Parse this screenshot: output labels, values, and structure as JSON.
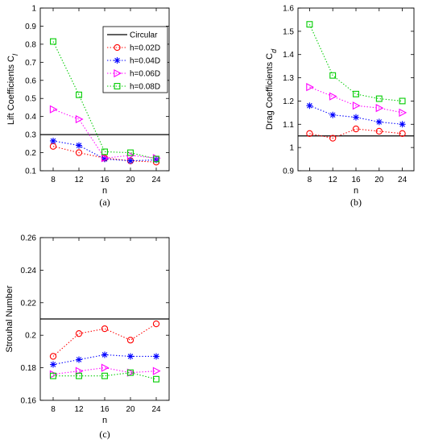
{
  "series_styles": [
    {
      "name": "h=0.02D",
      "color": "#ff0000",
      "marker": "circle"
    },
    {
      "name": "h=0.04D",
      "color": "#0000ff",
      "marker": "asterisk"
    },
    {
      "name": "h=0.06D",
      "color": "#ff00ff",
      "marker": "triangle-right"
    },
    {
      "name": "h=0.08D",
      "color": "#00cc00",
      "marker": "square"
    }
  ],
  "reference_style": {
    "name": "Circular",
    "color": "#000000"
  },
  "chart_data": [
    {
      "type": "line",
      "panel_label": "(a)",
      "xlabel": "n",
      "ylabel": "Lift Coefficients C",
      "ylabel_subscript": "l",
      "x": [
        8,
        12,
        16,
        20,
        24
      ],
      "xlim": [
        6,
        26
      ],
      "ylim": [
        0.1,
        1
      ],
      "yticks": [
        0.1,
        0.2,
        0.3,
        0.4,
        0.5,
        0.6,
        0.7,
        0.8,
        0.9,
        1
      ],
      "ytick_labels": [
        "0.1",
        "0.2",
        "0.3",
        "0.4",
        "0.5",
        "0.6",
        "0.7",
        "0.8",
        "0.9",
        "1"
      ],
      "reference_line": {
        "name": "Circular",
        "value": 0.3
      },
      "legend": {
        "position": "top-right",
        "entries": [
          "Circular",
          "h=0.02D",
          "h=0.04D",
          "h=0.06D",
          "h=0.08D"
        ]
      },
      "series": [
        {
          "name": "h=0.02D",
          "values": [
            0.235,
            0.2,
            0.17,
            0.155,
            0.148
          ]
        },
        {
          "name": "h=0.04D",
          "values": [
            0.265,
            0.24,
            0.165,
            0.155,
            0.16
          ]
        },
        {
          "name": "h=0.06D",
          "values": [
            0.44,
            0.385,
            0.17,
            0.185,
            0.17
          ]
        },
        {
          "name": "h=0.08D",
          "values": [
            0.815,
            0.52,
            0.205,
            0.2,
            0.165
          ]
        }
      ]
    },
    {
      "type": "line",
      "panel_label": "(b)",
      "xlabel": "n",
      "ylabel": "Drag Coefficients C",
      "ylabel_subscript": "d",
      "x": [
        8,
        12,
        16,
        20,
        24
      ],
      "xlim": [
        6,
        26
      ],
      "ylim": [
        0.9,
        1.6
      ],
      "yticks": [
        0.9,
        1,
        1.1,
        1.2,
        1.3,
        1.4,
        1.5,
        1.6
      ],
      "ytick_labels": [
        "0.9",
        "1",
        "1.1",
        "1.2",
        "1.3",
        "1.4",
        "1.5",
        "1.6"
      ],
      "reference_line": {
        "name": "Circular",
        "value": 1.05
      },
      "series": [
        {
          "name": "h=0.02D",
          "values": [
            1.06,
            1.04,
            1.08,
            1.07,
            1.06
          ]
        },
        {
          "name": "h=0.04D",
          "values": [
            1.18,
            1.14,
            1.13,
            1.11,
            1.1
          ]
        },
        {
          "name": "h=0.06D",
          "values": [
            1.26,
            1.22,
            1.18,
            1.17,
            1.15
          ]
        },
        {
          "name": "h=0.08D",
          "values": [
            1.53,
            1.31,
            1.23,
            1.21,
            1.2
          ]
        }
      ]
    },
    {
      "type": "line",
      "panel_label": "(c)",
      "xlabel": "n",
      "ylabel": "Strouhal Number",
      "ylabel_subscript": "",
      "x": [
        8,
        12,
        16,
        20,
        24
      ],
      "xlim": [
        6,
        26
      ],
      "ylim": [
        0.16,
        0.26
      ],
      "yticks": [
        0.16,
        0.18,
        0.2,
        0.22,
        0.24,
        0.26
      ],
      "ytick_labels": [
        "0.16",
        "0.18",
        "0.2",
        "0.22",
        "0.24",
        "0.26"
      ],
      "reference_line": {
        "name": "Circular",
        "value": 0.21
      },
      "series": [
        {
          "name": "h=0.02D",
          "values": [
            0.187,
            0.201,
            0.204,
            0.197,
            0.207
          ]
        },
        {
          "name": "h=0.04D",
          "values": [
            0.182,
            0.185,
            0.188,
            0.187,
            0.187
          ]
        },
        {
          "name": "h=0.06D",
          "values": [
            0.176,
            0.178,
            0.18,
            0.177,
            0.178
          ]
        },
        {
          "name": "h=0.08D",
          "values": [
            0.175,
            0.175,
            0.175,
            0.177,
            0.173
          ]
        }
      ]
    }
  ]
}
